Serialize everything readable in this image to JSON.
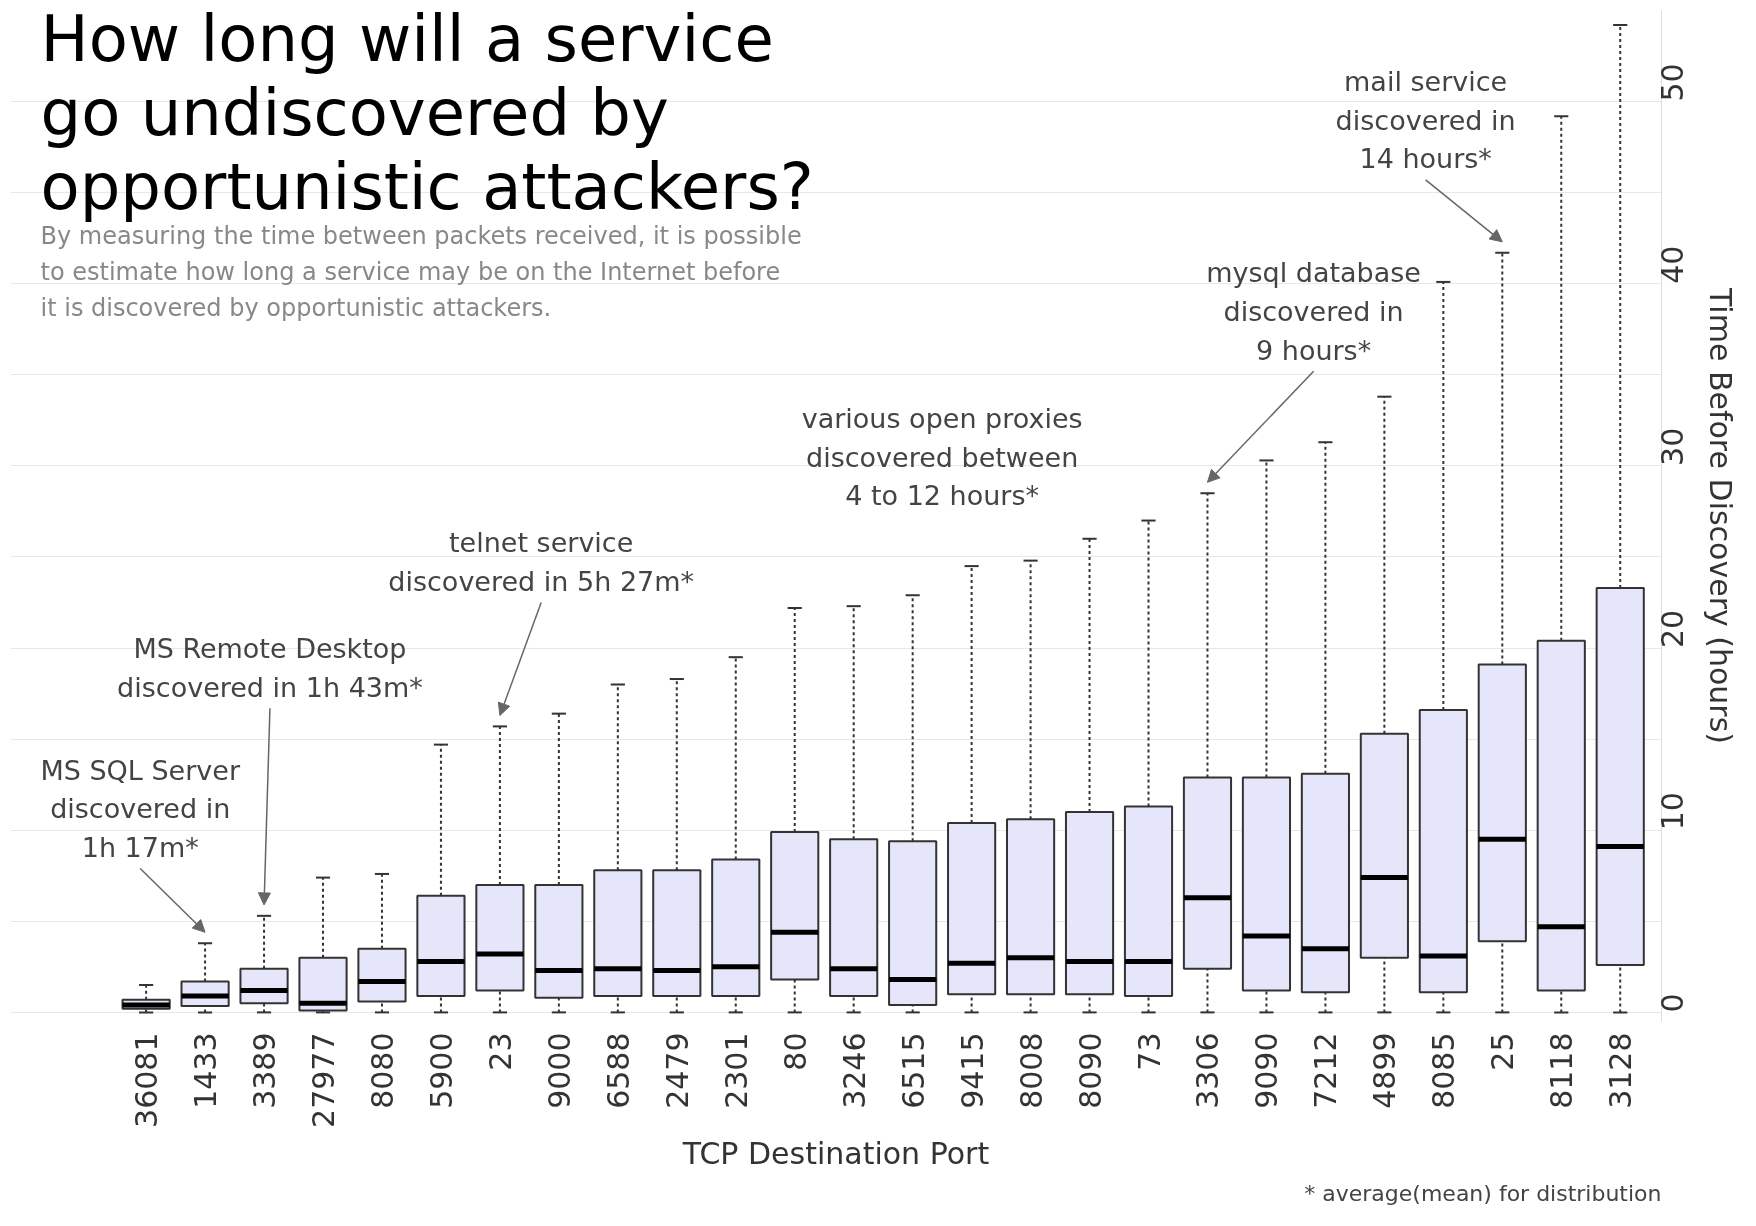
{
  "chart_data": {
    "type": "box",
    "title": "How long will a service go undiscovered by opportunistic attackers?",
    "subtitle": "By measuring the time between packets received, it is possible to estimate how long a service may be on the Internet before it is discovered by opportunistic attackers.",
    "xlabel": "TCP Destination Port",
    "ylabel": "Time Before Discovery (hours)",
    "categories": [
      "36081",
      "1433",
      "3389",
      "27977",
      "8080",
      "5900",
      "23",
      "9000",
      "6588",
      "2479",
      "2301",
      "80",
      "3246",
      "6515",
      "9415",
      "8008",
      "8090",
      "73",
      "3306",
      "9090",
      "7212",
      "4899",
      "8085",
      "25",
      "8118",
      "3128"
    ],
    "series": [
      {
        "color": "#e6e6fa",
        "boxes": [
          {
            "low": 0,
            "q1": 0.2,
            "median": 0.4,
            "q3": 0.7,
            "high": 1.5
          },
          {
            "low": 0,
            "q1": 0.35,
            "median": 0.9,
            "q3": 1.7,
            "high": 3.8
          },
          {
            "low": 0,
            "q1": 0.5,
            "median": 1.2,
            "q3": 2.4,
            "high": 5.3
          },
          {
            "low": 0,
            "q1": 0.1,
            "median": 0.5,
            "q3": 3.0,
            "high": 7.4
          },
          {
            "low": 0,
            "q1": 0.6,
            "median": 1.7,
            "q3": 3.5,
            "high": 7.6
          },
          {
            "low": 0,
            "q1": 0.9,
            "median": 2.8,
            "q3": 6.4,
            "high": 14.7
          },
          {
            "low": 0,
            "q1": 1.2,
            "median": 3.2,
            "q3": 7.0,
            "high": 15.7
          },
          {
            "low": 0,
            "q1": 0.8,
            "median": 2.3,
            "q3": 7.0,
            "high": 16.4
          },
          {
            "low": 0,
            "q1": 0.9,
            "median": 2.4,
            "q3": 7.8,
            "high": 18.0
          },
          {
            "low": 0,
            "q1": 0.9,
            "median": 2.3,
            "q3": 7.8,
            "high": 18.3
          },
          {
            "low": 0,
            "q1": 0.9,
            "median": 2.5,
            "q3": 8.4,
            "high": 19.5
          },
          {
            "low": 0,
            "q1": 1.8,
            "median": 4.4,
            "q3": 9.9,
            "high": 22.2
          },
          {
            "low": 0,
            "q1": 0.9,
            "median": 2.4,
            "q3": 9.5,
            "high": 22.3
          },
          {
            "low": 0,
            "q1": 0.4,
            "median": 1.8,
            "q3": 9.4,
            "high": 22.9
          },
          {
            "low": 0,
            "q1": 1.0,
            "median": 2.7,
            "q3": 10.4,
            "high": 24.5
          },
          {
            "low": 0,
            "q1": 1.0,
            "median": 3.0,
            "q3": 10.6,
            "high": 24.8
          },
          {
            "low": 0,
            "q1": 1.0,
            "median": 2.8,
            "q3": 11.0,
            "high": 26.0
          },
          {
            "low": 0,
            "q1": 0.9,
            "median": 2.8,
            "q3": 11.3,
            "high": 27.0
          },
          {
            "low": 0,
            "q1": 2.4,
            "median": 6.3,
            "q3": 12.9,
            "high": 28.5
          },
          {
            "low": 0,
            "q1": 1.2,
            "median": 4.2,
            "q3": 12.9,
            "high": 30.3
          },
          {
            "low": 0,
            "q1": 1.1,
            "median": 3.5,
            "q3": 13.1,
            "high": 31.3
          },
          {
            "low": 0,
            "q1": 3.0,
            "median": 7.4,
            "q3": 15.3,
            "high": 33.8
          },
          {
            "low": 0,
            "q1": 1.1,
            "median": 3.1,
            "q3": 16.6,
            "high": 40.1
          },
          {
            "low": 0,
            "q1": 3.9,
            "median": 9.5,
            "q3": 19.1,
            "high": 41.7
          },
          {
            "low": 0,
            "q1": 1.2,
            "median": 4.7,
            "q3": 20.4,
            "high": 49.2
          },
          {
            "low": 0,
            "q1": 2.6,
            "median": 9.1,
            "q3": 23.3,
            "high": 54.2
          }
        ]
      }
    ],
    "ylim": [
      -0.5,
      55
    ],
    "yticks": [
      0,
      {
        "value": 5,
        "label": null
      },
      10,
      {
        "value": 15,
        "label": null
      },
      20,
      {
        "value": 25,
        "label": null
      },
      30,
      {
        "value": 35,
        "label": null
      },
      40,
      {
        "value": 45,
        "label": null
      },
      50
    ],
    "grid": "y",
    "annotations": [
      "MS SQL Server\ndiscovered in\n1h 17m*",
      "MS Remote Desktop\ndiscovered in 1h 43m*",
      "telnet service\ndiscovered in 5h 27m*",
      "various open proxies\ndiscovered between\n4 to 12 hours*",
      "mysql database\ndiscovered in\n9 hours*",
      "mail service\ndiscovered in\n14 hours*",
      "* average(mean) for distribution"
    ]
  }
}
